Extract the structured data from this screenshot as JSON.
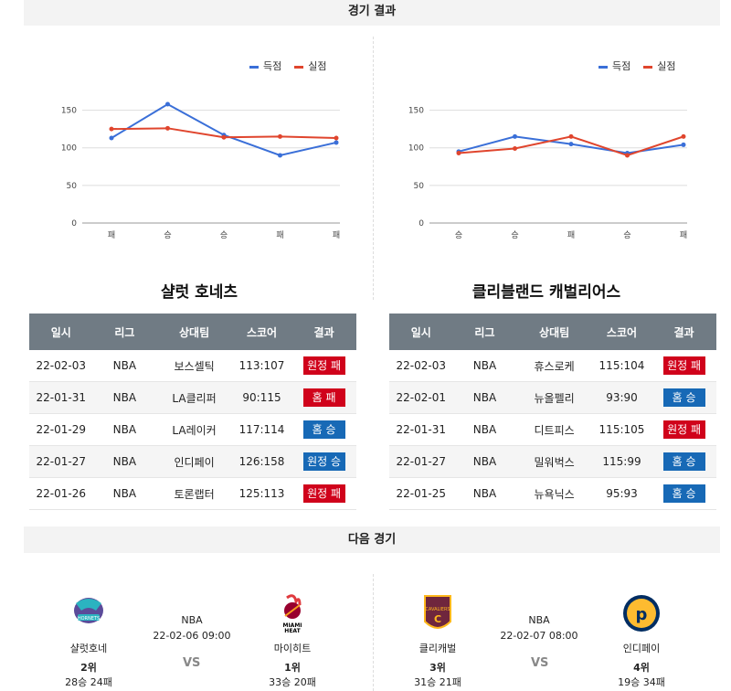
{
  "section1_title": "경기 결과",
  "section2_title": "다음 경기",
  "legend": {
    "scored": "득점",
    "conceded": "실점",
    "scored_color": "#3a6fd8",
    "conceded_color": "#e0452d"
  },
  "charts": [
    {
      "type": "line",
      "categories": [
        "패",
        "승",
        "승",
        "패",
        "패"
      ],
      "series": [
        {
          "name": "득점",
          "color": "#3a6fd8",
          "values": [
            113,
            158,
            117,
            90,
            107
          ]
        },
        {
          "name": "실점",
          "color": "#e0452d",
          "values": [
            125,
            126,
            114,
            115,
            113
          ]
        }
      ],
      "yticks": [
        0,
        50,
        100,
        150
      ],
      "ylim": [
        0,
        175
      ]
    },
    {
      "type": "line",
      "categories": [
        "승",
        "승",
        "패",
        "승",
        "패"
      ],
      "series": [
        {
          "name": "득점",
          "color": "#3a6fd8",
          "values": [
            95,
            115,
            105,
            93,
            104
          ]
        },
        {
          "name": "실점",
          "color": "#e0452d",
          "values": [
            93,
            99,
            115,
            90,
            115
          ]
        }
      ],
      "yticks": [
        0,
        50,
        100,
        150
      ],
      "ylim": [
        0,
        175
      ]
    }
  ],
  "teams": [
    {
      "name": "샬럿 호네츠",
      "headers": [
        "일시",
        "리그",
        "상대팀",
        "스코어",
        "결과"
      ],
      "rows": [
        {
          "date": "22-02-03",
          "league": "NBA",
          "opp": "보스셀틱",
          "score": "113:107",
          "result": "원정 패",
          "kind": "loss"
        },
        {
          "date": "22-01-31",
          "league": "NBA",
          "opp": "LA클리퍼",
          "score": "90:115",
          "result": "홈 패",
          "kind": "loss"
        },
        {
          "date": "22-01-29",
          "league": "NBA",
          "opp": "LA레이커",
          "score": "117:114",
          "result": "홈 승",
          "kind": "win"
        },
        {
          "date": "22-01-27",
          "league": "NBA",
          "opp": "인디페이",
          "score": "126:158",
          "result": "원정 승",
          "kind": "win"
        },
        {
          "date": "22-01-26",
          "league": "NBA",
          "opp": "토론랩터",
          "score": "125:113",
          "result": "원정 패",
          "kind": "loss"
        }
      ]
    },
    {
      "name": "클리블랜드 캐벌리어스",
      "headers": [
        "일시",
        "리그",
        "상대팀",
        "스코어",
        "결과"
      ],
      "rows": [
        {
          "date": "22-02-03",
          "league": "NBA",
          "opp": "휴스로케",
          "score": "115:104",
          "result": "원정 패",
          "kind": "loss"
        },
        {
          "date": "22-02-01",
          "league": "NBA",
          "opp": "뉴올펠리",
          "score": "93:90",
          "result": "홈 승",
          "kind": "win"
        },
        {
          "date": "22-01-31",
          "league": "NBA",
          "opp": "디트피스",
          "score": "115:105",
          "result": "원정 패",
          "kind": "loss"
        },
        {
          "date": "22-01-27",
          "league": "NBA",
          "opp": "밀워벅스",
          "score": "115:99",
          "result": "홈 승",
          "kind": "win"
        },
        {
          "date": "22-01-25",
          "league": "NBA",
          "opp": "뉴욕닉스",
          "score": "95:93",
          "result": "홈 승",
          "kind": "win"
        }
      ]
    }
  ],
  "next_games": [
    {
      "league": "NBA",
      "datetime": "22-02-06 09:00",
      "vs": "VS",
      "home": {
        "name": "샬럿호네",
        "rank": "2위",
        "record": "28승 24패",
        "logo": "hornets-logo"
      },
      "away": {
        "name": "마이히트",
        "rank": "1위",
        "record": "33승 20패",
        "logo": "heat-logo"
      }
    },
    {
      "league": "NBA",
      "datetime": "22-02-07 08:00",
      "vs": "VS",
      "home": {
        "name": "클리캐벌",
        "rank": "3위",
        "record": "31승 21패",
        "logo": "cavaliers-logo"
      },
      "away": {
        "name": "인디페이",
        "rank": "4위",
        "record": "19승 34패",
        "logo": "pacers-logo"
      }
    }
  ]
}
